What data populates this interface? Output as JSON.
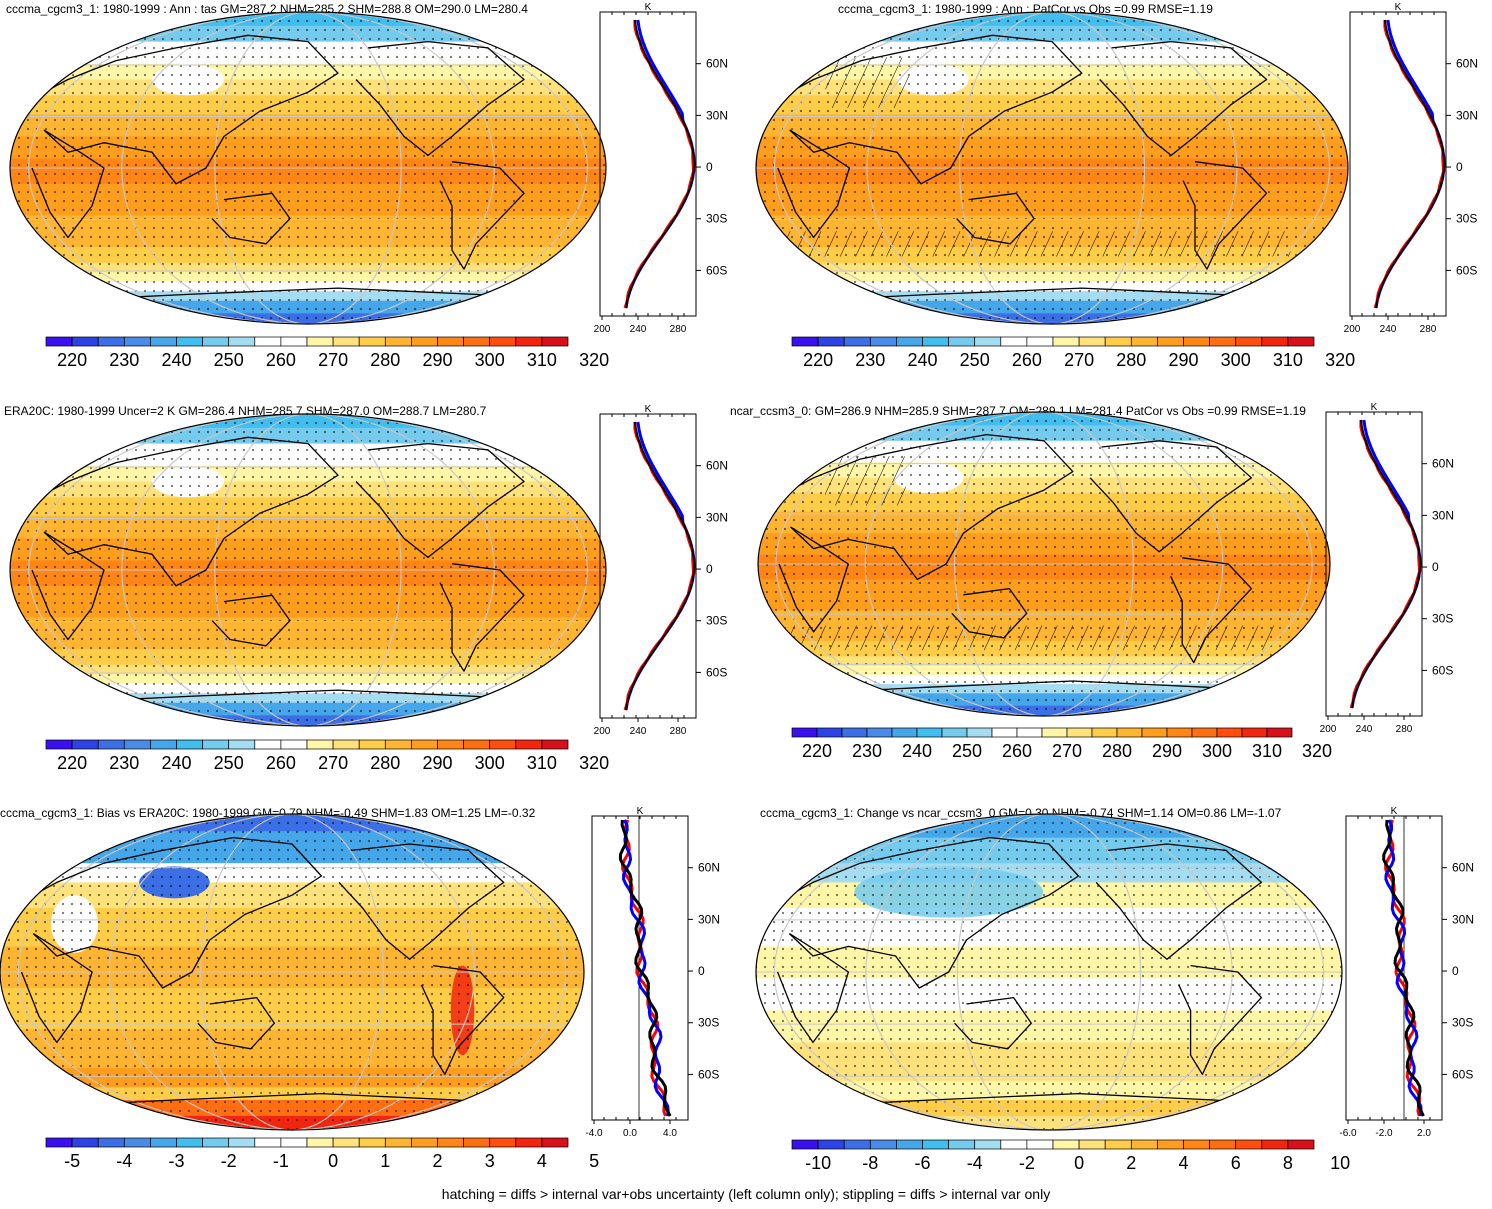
{
  "footnote": "hatching = diffs > internal var+obs uncertainty (left column only); stippling = diffs > internal var only",
  "colors": {
    "scale": [
      "#3a0ff0",
      "#2e43e6",
      "#3c6ee6",
      "#4a8ae8",
      "#46a6ea",
      "#41bdee",
      "#74cbee",
      "#a4dcf2",
      "#ffffff",
      "#ffffff",
      "#fff6a8",
      "#ffe27c",
      "#ffcd48",
      "#ffb432",
      "#ff9d1c",
      "#ff8614",
      "#ff6e10",
      "#ff4e0e",
      "#f2260e",
      "#d8101a"
    ],
    "profile_model": "#0000ff",
    "profile_obs": "#ff0000",
    "profile_mean": "#000000",
    "coast": "#000000",
    "grid": "#c8c8c8"
  },
  "panels": [
    {
      "id": "p1",
      "title": "cccma_cgcm3_1: 1980-1999 : Ann : tas GM=287.2 NHM=285.2 SHM=288.8 OM=290.0 LM=280.4",
      "colorbar_labels": [
        "220",
        "230",
        "240",
        "250",
        "260",
        "270",
        "280",
        "290",
        "300",
        "310",
        "320"
      ],
      "profile": {
        "unit": "K",
        "x_ticks": [
          "200",
          "240",
          "280"
        ],
        "lat_ticks": [
          "60N",
          "30N",
          "0",
          "30S",
          "60S"
        ]
      }
    },
    {
      "id": "p2",
      "title": "cccma_cgcm3_1: 1980-1999 : Ann : PatCor vs Obs =0.99 RMSE=1.19",
      "colorbar_labels": [
        "220",
        "230",
        "240",
        "250",
        "260",
        "270",
        "280",
        "290",
        "300",
        "310",
        "320"
      ],
      "profile": {
        "unit": "K",
        "x_ticks": [
          "200",
          "240",
          "280"
        ],
        "lat_ticks": [
          "60N",
          "30N",
          "0",
          "30S",
          "60S"
        ]
      }
    },
    {
      "id": "p3",
      "title": "ERA20C: 1980-1999 Uncer=2 K GM=286.4 NHM=285.7 SHM=287.0 OM=288.7 LM=280.7",
      "colorbar_labels": [
        "220",
        "230",
        "240",
        "250",
        "260",
        "270",
        "280",
        "290",
        "300",
        "310",
        "320"
      ],
      "profile": {
        "unit": "K",
        "x_ticks": [
          "200",
          "240",
          "280"
        ],
        "lat_ticks": [
          "60N",
          "30N",
          "0",
          "30S",
          "60S"
        ]
      }
    },
    {
      "id": "p4",
      "title": "ncar_ccsm3_0: GM=286.9 NHM=285.9 SHM=287.7 OM=289.1 LM=281.4 PatCor vs Obs =0.99 RMSE=1.19",
      "colorbar_labels": [
        "220",
        "230",
        "240",
        "250",
        "260",
        "270",
        "280",
        "290",
        "300",
        "310",
        "320"
      ],
      "profile": {
        "unit": "K",
        "x_ticks": [
          "200",
          "240",
          "280"
        ],
        "lat_ticks": [
          "60N",
          "30N",
          "0",
          "30S",
          "60S"
        ]
      }
    },
    {
      "id": "p5",
      "title": "cccma_cgcm3_1: Bias vs ERA20C: 1980-1999 GM=0.79 NHM=-0.49 SHM=1.83 OM=1.25 LM=-0.32",
      "colorbar_labels": [
        "-5",
        "-4",
        "-3",
        "-2",
        "-1",
        "0",
        "1",
        "2",
        "3",
        "4",
        "5"
      ],
      "profile": {
        "unit": "K",
        "x_ticks": [
          "-4.0",
          "0.0",
          "4.0"
        ],
        "lat_ticks": [
          "60N",
          "30N",
          "0",
          "30S",
          "60S"
        ]
      }
    },
    {
      "id": "p6",
      "title": "cccma_cgcm3_1: Change vs ncar_ccsm3_0 GM=0.30 NHM=-0.74 SHM=1.14 OM=0.86 LM=-1.07",
      "colorbar_labels": [
        "-10",
        "-8",
        "-6",
        "-4",
        "-2",
        "0",
        "2",
        "4",
        "6",
        "8",
        "10"
      ],
      "profile": {
        "unit": "K",
        "x_ticks": [
          "-6.0",
          "-2.0",
          "2.0"
        ],
        "lat_ticks": [
          "60N",
          "30N",
          "0",
          "30S",
          "60S"
        ]
      }
    }
  ]
}
